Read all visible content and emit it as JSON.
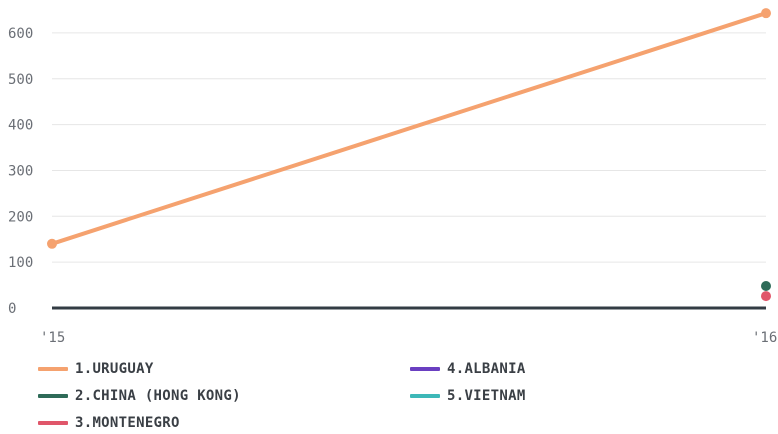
{
  "chart_data": {
    "type": "line",
    "x": [
      "'15",
      "'16"
    ],
    "ylim": [
      0,
      650
    ],
    "yticks": [
      "0",
      "100",
      "200",
      "300",
      "400",
      "500",
      "600"
    ],
    "grid": true,
    "legend_placement": "bottom",
    "series": [
      {
        "name": "1.URUGUAY",
        "color": "#f5a26f",
        "values": [
          140,
          643
        ]
      },
      {
        "name": "2.CHINA (HONG KONG)",
        "color": "#2e6b58",
        "values": [
          null,
          48
        ]
      },
      {
        "name": "3.MONTENEGRO",
        "color": "#e0566a",
        "values": [
          null,
          26
        ]
      },
      {
        "name": "4.ALBANIA",
        "color": "#6a3fc1",
        "values": [
          null,
          null
        ]
      },
      {
        "name": "5.VIETNAM",
        "color": "#3db8b8",
        "values": [
          null,
          null
        ]
      }
    ]
  }
}
